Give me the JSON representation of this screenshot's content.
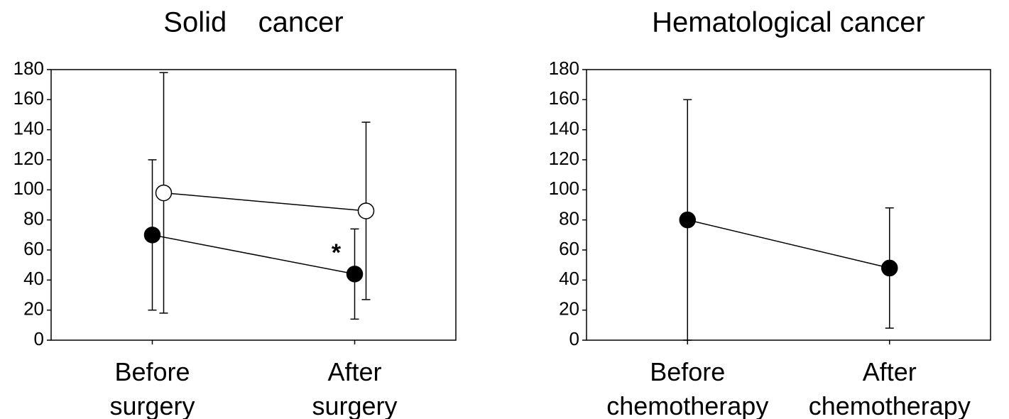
{
  "chart_data": [
    {
      "type": "line",
      "title": "Solid    cancer",
      "categories": [
        "Before surgery",
        "After surgery"
      ],
      "series": [
        {
          "color": "#000000",
          "values": [
            70,
            44
          ],
          "errors": [
            50,
            30
          ]
        },
        {
          "color": "#ffffff",
          "values": [
            98,
            86
          ],
          "errors": [
            80,
            59
          ]
        }
      ],
      "annotations": [
        "*"
      ],
      "ylim": [
        0,
        180
      ],
      "yticks": [
        0,
        20,
        40,
        60,
        80,
        100,
        120,
        140,
        160,
        180
      ]
    },
    {
      "type": "line",
      "title": "Hematological cancer",
      "categories": [
        "Before chemotherapy",
        "After chemotherapy"
      ],
      "series": [
        {
          "color": "#000000",
          "values": [
            80,
            48
          ],
          "errors": [
            80,
            40
          ]
        }
      ],
      "ylim": [
        0,
        180
      ],
      "yticks": [
        0,
        20,
        40,
        60,
        80,
        100,
        120,
        140,
        160,
        180
      ]
    }
  ]
}
